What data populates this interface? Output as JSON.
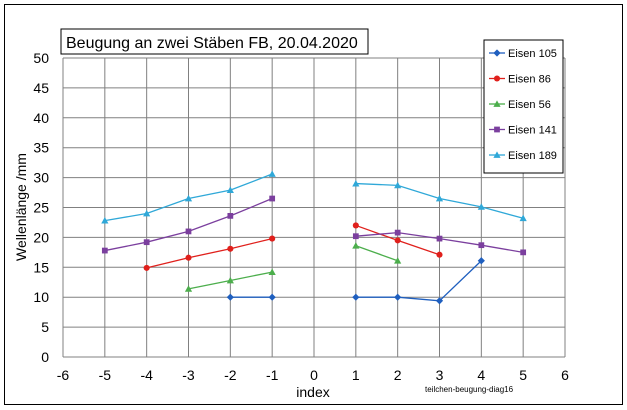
{
  "chart_data": {
    "type": "line",
    "title": "Beugung an zwei Stäben FB, 20.04.2020",
    "xlabel": "index",
    "ylabel": "Wellenlänge /mm",
    "xlim": [
      -6,
      6
    ],
    "ylim": [
      0,
      50
    ],
    "x_ticks": [
      "-6",
      "-5",
      "-4",
      "-3",
      "-2",
      "-1",
      "0",
      "1",
      "2",
      "3",
      "4",
      "5",
      "6"
    ],
    "y_ticks": [
      "0",
      "5",
      "10",
      "15",
      "20",
      "25",
      "30",
      "35",
      "40",
      "45",
      "50"
    ],
    "grid": true,
    "legend_position": "right-top",
    "annotation": "teilchen-beugung-diag16",
    "series": [
      {
        "name": "Eisen 105",
        "color": "#1f5fbf",
        "marker": "diamond",
        "segments": [
          [
            [
              -2,
              10
            ],
            [
              -1,
              10
            ]
          ],
          [
            [
              1,
              10
            ],
            [
              2,
              10
            ],
            [
              3,
              9.4
            ],
            [
              4,
              16.1
            ]
          ]
        ]
      },
      {
        "name": "Eisen 86",
        "color": "#e0201c",
        "marker": "circle",
        "segments": [
          [
            [
              -4,
              14.9
            ],
            [
              -3,
              16.6
            ],
            [
              -2,
              18.1
            ],
            [
              -1,
              19.8
            ]
          ],
          [
            [
              1,
              22
            ],
            [
              2,
              19.5
            ],
            [
              3,
              17.1
            ]
          ]
        ]
      },
      {
        "name": "Eisen 56",
        "color": "#4cae4c",
        "marker": "triangle",
        "segments": [
          [
            [
              -3,
              11.4
            ],
            [
              -2,
              12.8
            ],
            [
              -1,
              14.2
            ]
          ],
          [
            [
              1,
              18.6
            ],
            [
              2,
              16.1
            ]
          ]
        ]
      },
      {
        "name": "Eisen 141",
        "color": "#7b3f9e",
        "marker": "square",
        "segments": [
          [
            [
              -5,
              17.8
            ],
            [
              -4,
              19.2
            ],
            [
              -3,
              21
            ],
            [
              -2,
              23.6
            ],
            [
              -1,
              26.5
            ]
          ],
          [
            [
              1,
              20.2
            ],
            [
              2,
              20.8
            ],
            [
              3,
              19.8
            ],
            [
              4,
              18.7
            ],
            [
              5,
              17.5
            ]
          ]
        ]
      },
      {
        "name": "Eisen 189",
        "color": "#2fa8d8",
        "marker": "triangle",
        "segments": [
          [
            [
              -5,
              22.8
            ],
            [
              -4,
              24
            ],
            [
              -3,
              26.5
            ],
            [
              -2,
              27.9
            ],
            [
              -1,
              30.6
            ]
          ],
          [
            [
              1,
              29
            ],
            [
              2,
              28.7
            ],
            [
              3,
              26.5
            ],
            [
              4,
              25.1
            ],
            [
              5,
              23.2
            ]
          ]
        ]
      }
    ]
  }
}
